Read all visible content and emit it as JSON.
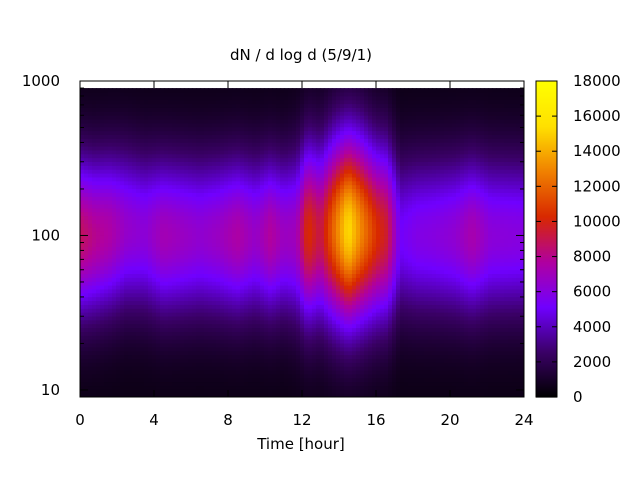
{
  "chart_data": {
    "type": "heatmap",
    "title": "dN / d log d (5/9/1)",
    "xlabel": "Time [hour]",
    "ylabel": "",
    "x_range": [
      0,
      24
    ],
    "x_ticks": [
      0,
      4,
      8,
      12,
      16,
      20,
      24
    ],
    "y_scale": "log",
    "y_range": [
      9,
      1000
    ],
    "y_ticks": [
      10,
      100,
      1000
    ],
    "y_data_range": [
      9,
      900
    ],
    "colorbar": {
      "range": [
        0,
        18000
      ],
      "ticks": [
        0,
        2000,
        4000,
        6000,
        8000,
        10000,
        12000,
        14000,
        16000,
        18000
      ],
      "palette": [
        "#000000",
        "#3a0066",
        "#7000ff",
        "#b000a0",
        "#d82800",
        "#f08000",
        "#ffe000",
        "#ffff00"
      ]
    },
    "background_level": 500,
    "profiles": [
      {
        "time": 0.0,
        "peak_size": 100,
        "peak_value": 8800,
        "width_decades": 0.36
      },
      {
        "time": 0.8,
        "peak_size": 100,
        "peak_value": 8000,
        "width_decades": 0.36
      },
      {
        "time": 1.6,
        "peak_size": 105,
        "peak_value": 7600,
        "width_decades": 0.36
      },
      {
        "time": 2.5,
        "peak_size": 110,
        "peak_value": 6600,
        "width_decades": 0.36
      },
      {
        "time": 3.5,
        "peak_size": 105,
        "peak_value": 6200,
        "width_decades": 0.36
      },
      {
        "time": 4.5,
        "peak_size": 100,
        "peak_value": 7200,
        "width_decades": 0.36
      },
      {
        "time": 5.5,
        "peak_size": 100,
        "peak_value": 6800,
        "width_decades": 0.36
      },
      {
        "time": 6.5,
        "peak_size": 100,
        "peak_value": 6400,
        "width_decades": 0.36
      },
      {
        "time": 7.5,
        "peak_size": 100,
        "peak_value": 6800,
        "width_decades": 0.36
      },
      {
        "time": 8.5,
        "peak_size": 100,
        "peak_value": 7600,
        "width_decades": 0.36
      },
      {
        "time": 9.5,
        "peak_size": 100,
        "peak_value": 6600,
        "width_decades": 0.36
      },
      {
        "time": 10.3,
        "peak_size": 100,
        "peak_value": 7800,
        "width_decades": 0.36
      },
      {
        "time": 11.0,
        "peak_size": 100,
        "peak_value": 6800,
        "width_decades": 0.36
      },
      {
        "time": 11.7,
        "peak_size": 100,
        "peak_value": 7000,
        "width_decades": 0.38
      },
      {
        "time": 12.3,
        "peak_size": 105,
        "peak_value": 10500,
        "width_decades": 0.4
      },
      {
        "time": 13.0,
        "peak_size": 105,
        "peak_value": 9000,
        "width_decades": 0.4
      },
      {
        "time": 13.8,
        "peak_size": 110,
        "peak_value": 12500,
        "width_decades": 0.42
      },
      {
        "time": 14.5,
        "peak_size": 110,
        "peak_value": 15500,
        "width_decades": 0.42
      },
      {
        "time": 15.2,
        "peak_size": 110,
        "peak_value": 13000,
        "width_decades": 0.42
      },
      {
        "time": 16.0,
        "peak_size": 105,
        "peak_value": 10500,
        "width_decades": 0.4
      },
      {
        "time": 16.6,
        "peak_size": 105,
        "peak_value": 9500,
        "width_decades": 0.4
      },
      {
        "time": 17.3,
        "peak_size": 100,
        "peak_value": 5200,
        "width_decades": 0.36
      },
      {
        "time": 18.2,
        "peak_size": 100,
        "peak_value": 5800,
        "width_decades": 0.36
      },
      {
        "time": 19.2,
        "peak_size": 100,
        "peak_value": 6000,
        "width_decades": 0.36
      },
      {
        "time": 20.3,
        "peak_size": 100,
        "peak_value": 6400,
        "width_decades": 0.36
      },
      {
        "time": 21.2,
        "peak_size": 100,
        "peak_value": 7400,
        "width_decades": 0.36
      },
      {
        "time": 22.2,
        "peak_size": 100,
        "peak_value": 6200,
        "width_decades": 0.36
      },
      {
        "time": 24.0,
        "peak_size": 100,
        "peak_value": 6000,
        "width_decades": 0.36
      }
    ]
  }
}
